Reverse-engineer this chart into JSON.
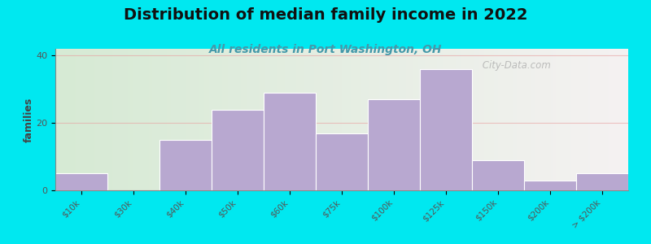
{
  "title": "Distribution of median family income in 2022",
  "subtitle": "All residents in Port Washington, OH",
  "ylabel": "families",
  "categories": [
    "$10k",
    "$30k",
    "$40k",
    "$50k",
    "$60k",
    "$75k",
    "$100k",
    "$125k",
    "$150k",
    "$200k",
    "> $200k"
  ],
  "values": [
    5,
    0,
    15,
    24,
    29,
    17,
    27,
    36,
    9,
    3,
    5
  ],
  "bar_color": "#b8a8d0",
  "bar_edge_color": "#ffffff",
  "background_outer": "#00e8f0",
  "background_inner_left": "#d6ead4",
  "background_inner_right": "#f5f2f2",
  "title_fontsize": 14,
  "subtitle_fontsize": 10,
  "ylabel_fontsize": 9,
  "yticks": [
    0,
    20,
    40
  ],
  "ylim": [
    0,
    42
  ],
  "watermark": " City-Data.com",
  "grid_color": "#e8a0a0",
  "grid_alpha": 0.6,
  "tick_color": "#555555",
  "tick_fontsize": 7.5
}
